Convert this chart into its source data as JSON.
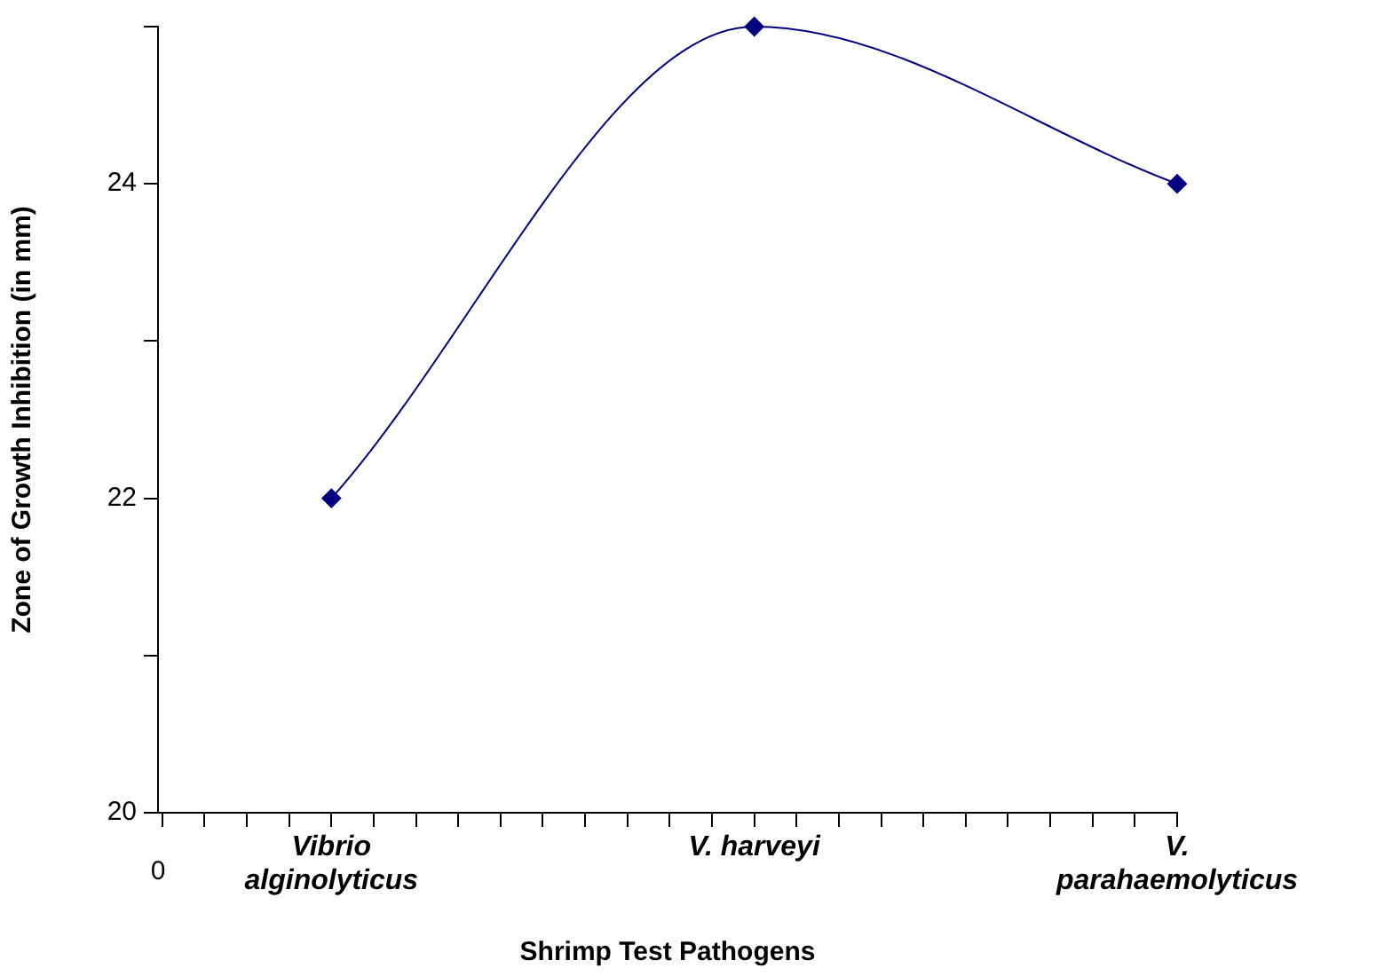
{
  "chart_data": {
    "type": "line",
    "xlabel": "Shrimp Test Pathogens",
    "ylabel": "Zone of Growth Inhibition (in mm)",
    "categories": [
      "Vibrio alginolyticus",
      "V. harveyi",
      "V. parahaemolyticus"
    ],
    "series": [
      {
        "color": "#000080",
        "values": [
          22,
          25,
          24
        ]
      }
    ],
    "ylim": [
      20,
      25
    ],
    "yticks": [
      20,
      {
        "value": 21,
        "label": null
      },
      22,
      {
        "value": 23,
        "label": null
      },
      24,
      {
        "value": 25,
        "label": null
      }
    ],
    "annotations": [
      "0"
    ],
    "grid": false,
    "legend": false,
    "marker": "diamond",
    "line_style": "solid"
  }
}
